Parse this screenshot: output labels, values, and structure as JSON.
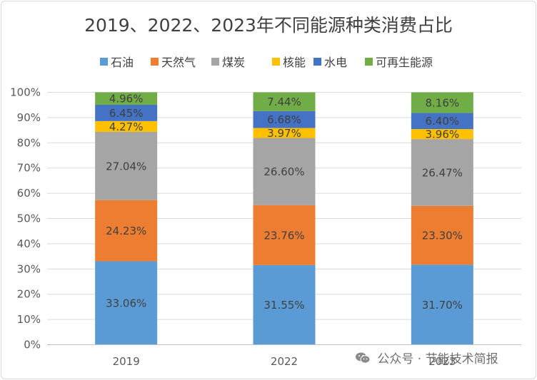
{
  "chart_data": {
    "type": "bar",
    "stacked": true,
    "normalized": true,
    "title": "2019、2022、2023年不同能源种类消费占比",
    "xlabel": "",
    "ylabel": "",
    "categories": [
      "2019",
      "2022",
      "2023"
    ],
    "ylim": [
      0,
      100
    ],
    "yticks": [
      "0%",
      "10%",
      "20%",
      "30%",
      "40%",
      "50%",
      "60%",
      "70%",
      "80%",
      "90%",
      "100%"
    ],
    "grid": true,
    "legend_position": "top",
    "series": [
      {
        "name": "石油",
        "color": "#5b9bd5",
        "values": [
          33.06,
          31.55,
          31.7
        ],
        "labels": [
          "33.06%",
          "31.55%",
          "31.70%"
        ]
      },
      {
        "name": "天然气",
        "color": "#ed7d31",
        "values": [
          24.23,
          23.76,
          23.3
        ],
        "labels": [
          "24.23%",
          "23.76%",
          "23.30%"
        ]
      },
      {
        "name": "煤炭",
        "color": "#a5a5a5",
        "values": [
          27.04,
          26.6,
          26.47
        ],
        "labels": [
          "27.04%",
          "26.60%",
          "26.47%"
        ]
      },
      {
        "name": "核能",
        "color": "#ffc000",
        "values": [
          4.27,
          3.97,
          3.96
        ],
        "labels": [
          "4.27%",
          "3.97%",
          "3.96%"
        ]
      },
      {
        "name": "水电",
        "color": "#4472c4",
        "values": [
          6.45,
          6.68,
          6.4
        ],
        "labels": [
          "6.45%",
          "6.68%",
          "6.40%"
        ]
      },
      {
        "name": "可再生能源",
        "color": "#70ad47",
        "values": [
          4.96,
          7.44,
          8.16
        ],
        "labels": [
          "4.96%",
          "7.44%",
          "8.16%"
        ]
      }
    ]
  },
  "watermark": {
    "text": "公众号 · 节能技术简报",
    "icon": "wechat-icon"
  }
}
